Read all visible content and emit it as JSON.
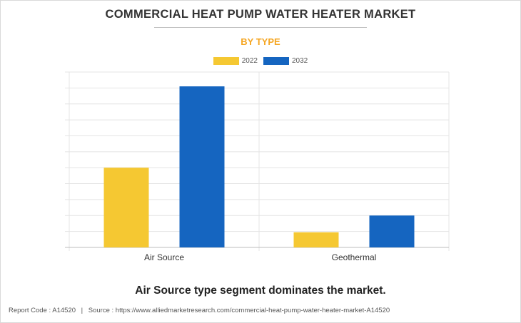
{
  "chart_data": {
    "type": "bar",
    "title": "COMMERCIAL HEAT PUMP WATER HEATER MARKET",
    "subtitle": "BY TYPE",
    "categories": [
      "Air Source",
      "Geothermal"
    ],
    "series": [
      {
        "name": "2022",
        "color": "#f5c832",
        "values": [
          50,
          9.5
        ]
      },
      {
        "name": "2032",
        "color": "#1565c0",
        "values": [
          101,
          20
        ]
      }
    ],
    "xlabel": "",
    "ylabel": "",
    "ylim": [
      0,
      110
    ],
    "grid": true,
    "legend_position": "top-center"
  },
  "caption": "Air Source type segment dominates the market.",
  "footer": {
    "report_code": "Report Code : A14520",
    "separator": "|",
    "source": "Source : https://www.alliedmarketresearch.com/commercial-heat-pump-water-heater-market-A14520"
  }
}
